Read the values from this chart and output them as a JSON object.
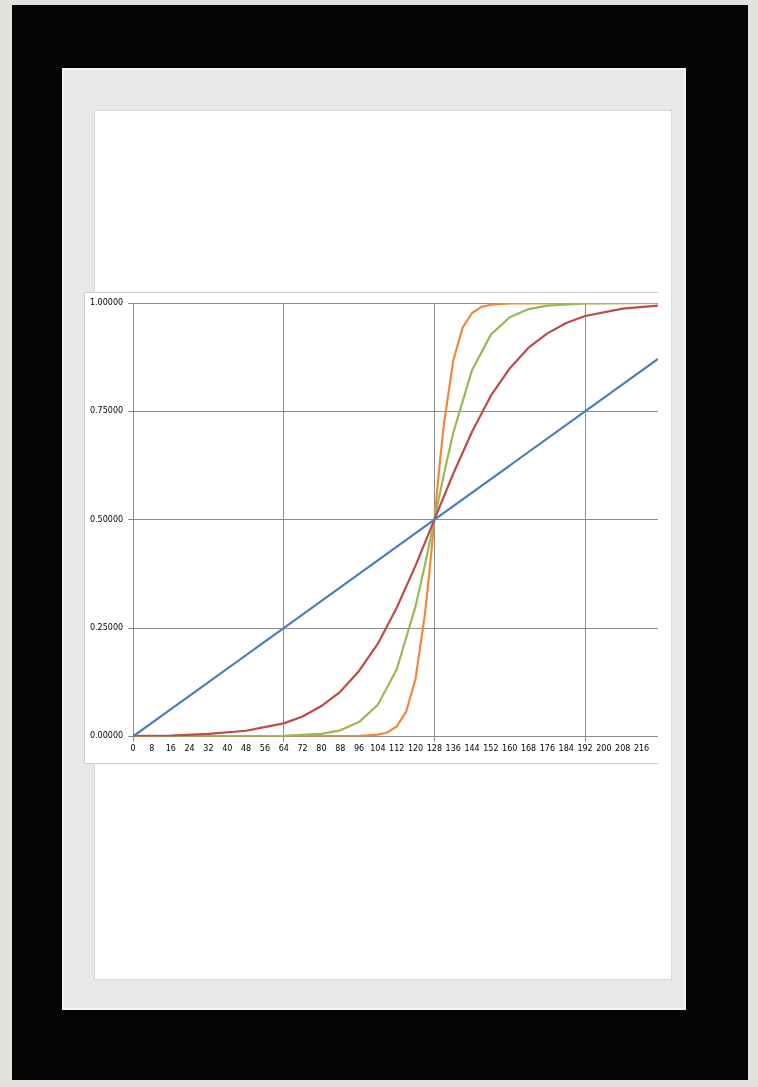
{
  "chart_data": {
    "type": "line",
    "xlim": [
      0,
      223
    ],
    "ylim": [
      0,
      1
    ],
    "xticks": [
      0,
      8,
      16,
      24,
      32,
      40,
      48,
      56,
      64,
      72,
      80,
      88,
      96,
      104,
      112,
      120,
      128,
      136,
      144,
      152,
      160,
      168,
      176,
      184,
      192,
      200,
      208,
      216
    ],
    "yticks": [
      {
        "value": 0,
        "label": "0.00000"
      },
      {
        "value": 0.25,
        "label": "0.25000"
      },
      {
        "value": 0.5,
        "label": "0.50000"
      },
      {
        "value": 0.75,
        "label": "0.75000"
      },
      {
        "value": 1,
        "label": "1.00000"
      }
    ],
    "grid": true,
    "legend": false,
    "marker": "none",
    "line_style": "solid",
    "series": [
      {
        "color": "#4a7ebb",
        "x": [
          0,
          64,
          128,
          192,
          223
        ],
        "values": [
          0,
          0.25,
          0.5,
          0.75,
          0.871
        ]
      },
      {
        "color": "#be4b48",
        "x": [
          0,
          16,
          32,
          48,
          64,
          72,
          80,
          88,
          96,
          104,
          112,
          120,
          128,
          136,
          144,
          152,
          160,
          168,
          176,
          184,
          192,
          208,
          223
        ],
        "values": [
          0.001,
          0.002,
          0.006,
          0.013,
          0.03,
          0.046,
          0.07,
          0.103,
          0.151,
          0.214,
          0.297,
          0.394,
          0.5,
          0.606,
          0.703,
          0.786,
          0.849,
          0.897,
          0.93,
          0.954,
          0.97,
          0.987,
          0.994
        ]
      },
      {
        "color": "#98b954",
        "x": [
          0,
          64,
          80,
          88,
          96,
          104,
          112,
          120,
          124,
          128,
          132,
          136,
          144,
          152,
          160,
          168,
          176,
          192,
          223
        ],
        "values": [
          0,
          0.001,
          0.006,
          0.014,
          0.033,
          0.073,
          0.155,
          0.3,
          0.396,
          0.5,
          0.604,
          0.7,
          0.845,
          0.927,
          0.967,
          0.986,
          0.994,
          0.999,
          1
        ]
      },
      {
        "color": "#f0883e",
        "x": [
          0,
          96,
          104,
          108,
          112,
          116,
          120,
          124,
          126,
          128,
          130,
          132,
          136,
          140,
          144,
          148,
          152,
          160,
          223
        ],
        "values": [
          0,
          0.001,
          0.004,
          0.009,
          0.023,
          0.057,
          0.133,
          0.282,
          0.385,
          0.5,
          0.615,
          0.718,
          0.867,
          0.943,
          0.977,
          0.991,
          0.996,
          0.999,
          1
        ]
      }
    ]
  }
}
